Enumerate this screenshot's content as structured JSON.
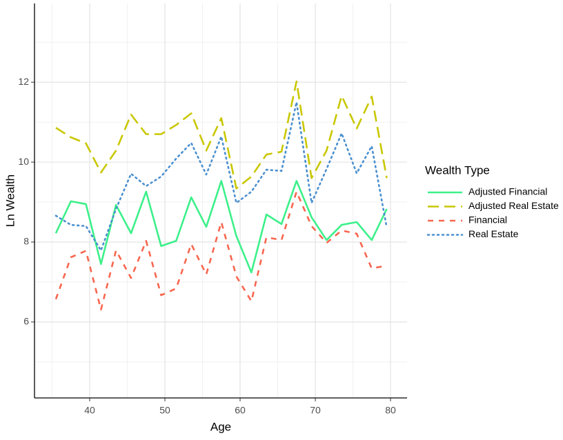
{
  "chart_data": {
    "type": "line",
    "x_label": "Age",
    "y_label": "Ln Wealth",
    "legend_title": "Wealth Type",
    "x": [
      35.5,
      37.5,
      39.5,
      41.5,
      43.5,
      45.5,
      47.5,
      49.5,
      51.5,
      53.5,
      55.5,
      57.5,
      59.5,
      61.5,
      63.5,
      65.5,
      67.5,
      69.5,
      71.5,
      73.5,
      75.5,
      77.5,
      79.5
    ],
    "series": [
      {
        "name": "Adjusted Financial",
        "color": "#3cf08a",
        "linetype": "solid",
        "values": [
          8.22,
          9.02,
          8.95,
          7.45,
          8.93,
          8.22,
          9.26,
          7.9,
          8.03,
          9.12,
          8.38,
          9.53,
          8.15,
          7.24,
          8.69,
          8.45,
          9.53,
          8.62,
          8.05,
          8.43,
          8.5,
          8.05,
          8.83
        ]
      },
      {
        "name": "Adjusted Real Estate",
        "color": "#c9c700",
        "linetype": "longdash",
        "values": [
          10.86,
          10.62,
          10.47,
          9.74,
          10.29,
          11.19,
          10.7,
          10.7,
          10.93,
          11.22,
          10.29,
          11.1,
          9.34,
          9.64,
          10.19,
          10.26,
          12.02,
          9.6,
          10.29,
          11.66,
          10.84,
          11.64,
          9.6
        ]
      },
      {
        "name": "Financial",
        "color": "#f8664f",
        "linetype": "dashed",
        "values": [
          6.57,
          7.62,
          7.78,
          6.31,
          7.79,
          7.1,
          8.03,
          6.67,
          6.84,
          7.95,
          7.19,
          8.5,
          7.14,
          6.52,
          8.12,
          8.05,
          9.26,
          8.4,
          7.98,
          8.29,
          8.21,
          7.34,
          7.41
        ]
      },
      {
        "name": "Real Estate",
        "color": "#4b8fcf",
        "linetype": "dotted",
        "values": [
          8.66,
          8.43,
          8.4,
          7.79,
          8.83,
          9.71,
          9.4,
          9.64,
          10.09,
          10.48,
          9.69,
          10.64,
          8.98,
          9.26,
          9.81,
          9.78,
          11.5,
          8.98,
          9.83,
          10.72,
          9.72,
          10.4,
          8.36
        ]
      }
    ],
    "xlim": [
      32.66,
      82.2
    ],
    "ylim": [
      4.1,
      13.97
    ],
    "xticks": [
      40,
      50,
      60,
      70,
      80
    ],
    "yticks": [
      6,
      8,
      10,
      12
    ],
    "x_minor_ticks": [
      35,
      45,
      55,
      65,
      75
    ],
    "y_minor_ticks": [
      5,
      7,
      9,
      11,
      13
    ],
    "grid": true,
    "legend": "right"
  }
}
